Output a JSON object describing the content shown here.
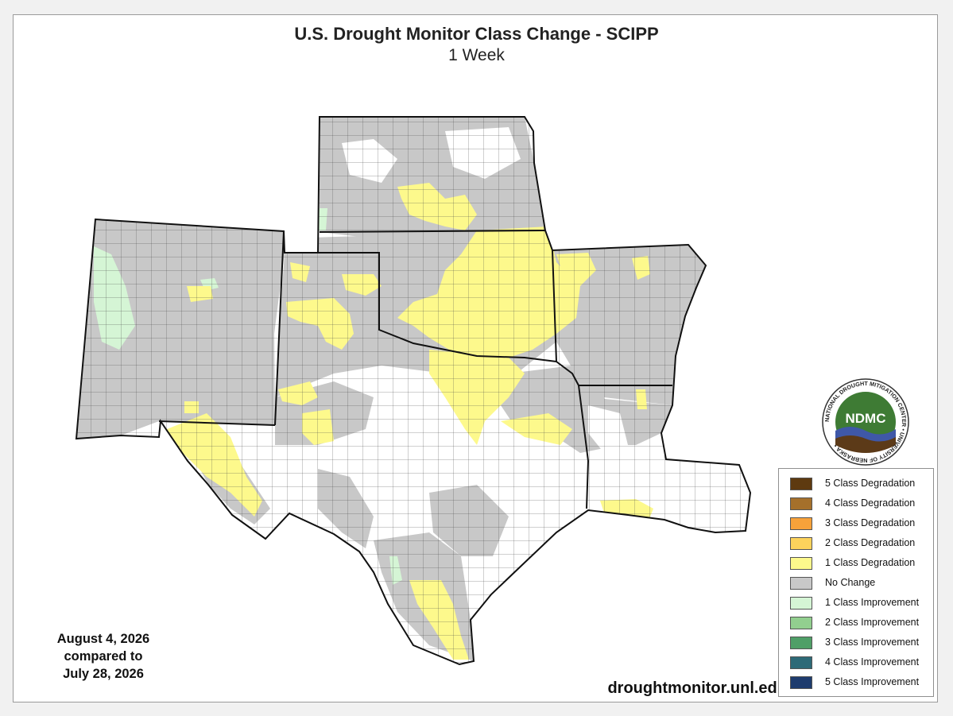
{
  "title": "U.S. Drought Monitor Class Change - SCIPP",
  "subtitle": "1 Week",
  "date_lines": [
    "August 4, 2026",
    "compared to",
    "July 28, 2026"
  ],
  "website": "droughtmonitor.unl.edu",
  "logo": {
    "abbrev": "NDMC",
    "ring_text": "NATIONAL DROUGHT MITIGATION CENTER • UNIVERSITY OF NEBRASKA •"
  },
  "legend": [
    {
      "label": "5 Class Degradation",
      "color": "#5e3a10"
    },
    {
      "label": "4 Class Degradation",
      "color": "#a5702b"
    },
    {
      "label": "3 Class Degradation",
      "color": "#f7a23a"
    },
    {
      "label": "2 Class Degradation",
      "color": "#fdd35c"
    },
    {
      "label": "1 Class Degradation",
      "color": "#fdf98c"
    },
    {
      "label": "No Change",
      "color": "#c8c8c8"
    },
    {
      "label": "1 Class Improvement",
      "color": "#d5f5d5"
    },
    {
      "label": "2 Class Improvement",
      "color": "#92cf8f"
    },
    {
      "label": "3 Class Improvement",
      "color": "#4f9f67"
    },
    {
      "label": "4 Class Improvement",
      "color": "#2d6a77"
    },
    {
      "label": "5 Class Improvement",
      "color": "#1e3c6e"
    }
  ]
}
